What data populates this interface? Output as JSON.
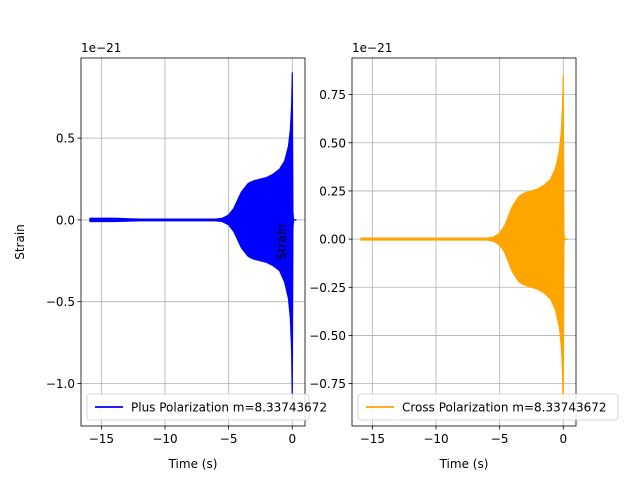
{
  "chart_data": [
    {
      "type": "line",
      "color": "#0000ff",
      "offset_text": "1e−21",
      "xlabel": "Time (s)",
      "ylabel": "Strain",
      "xlim": [
        -16.6,
        1.0
      ],
      "ylim": [
        -1.26,
        0.99
      ],
      "grid": true,
      "legend_loc": "lower left",
      "xticks": [
        -15,
        -10,
        -5,
        0
      ],
      "xtick_labels": [
        "−15",
        "−10",
        "−5",
        "0"
      ],
      "yticks": [
        0.5,
        0.0,
        -0.5,
        -1.0
      ],
      "ytick_labels": [
        "0.5",
        "0.0",
        "−0.5",
        "−1.0"
      ],
      "series": [
        {
          "name": "Plus Polarization m=8.33743672",
          "envelope": {
            "t": [
              -15.9,
              -14,
              -12,
              -10,
              -8,
              -6,
              -5.5,
              -5,
              -4.6,
              -4.3,
              -4.0,
              -3.7,
              -3.5,
              -3.3,
              -3.0,
              -2.5,
              -2.0,
              -1.5,
              -1.0,
              -0.6,
              -0.3,
              -0.15,
              -0.05,
              0.0,
              0.05,
              0.1,
              0.3
            ],
            "upper": [
              0.01,
              0.01,
              0.005,
              0.005,
              0.005,
              0.005,
              0.01,
              0.03,
              0.07,
              0.12,
              0.17,
              0.2,
              0.22,
              0.23,
              0.24,
              0.25,
              0.26,
              0.28,
              0.31,
              0.36,
              0.45,
              0.55,
              0.7,
              0.9,
              0.05,
              0.0,
              0.0
            ],
            "lower": [
              -0.01,
              -0.01,
              -0.005,
              -0.005,
              -0.005,
              -0.005,
              -0.01,
              -0.03,
              -0.07,
              -0.12,
              -0.17,
              -0.2,
              -0.22,
              -0.23,
              -0.24,
              -0.25,
              -0.26,
              -0.28,
              -0.31,
              -0.38,
              -0.48,
              -0.6,
              -0.8,
              -1.1,
              -0.05,
              0.0,
              0.0
            ]
          }
        }
      ]
    },
    {
      "type": "line",
      "color": "#ffa500",
      "offset_text": "1e−21",
      "xlabel": "Time (s)",
      "ylabel": "Strain",
      "xlim": [
        -16.6,
        1.0
      ],
      "ylim": [
        -0.97,
        0.94
      ],
      "grid": true,
      "legend_loc": "lower left",
      "xticks": [
        -15,
        -10,
        -5,
        0
      ],
      "xtick_labels": [
        "−15",
        "−10",
        "−5",
        "0"
      ],
      "yticks": [
        0.75,
        0.5,
        0.25,
        0.0,
        -0.25,
        -0.5,
        -0.75
      ],
      "ytick_labels": [
        "0.75",
        "0.50",
        "0.25",
        "0.00",
        "−0.25",
        "−0.50",
        "−0.75"
      ],
      "series": [
        {
          "name": "Cross Polarization m=8.33743672",
          "envelope": {
            "t": [
              -15.9,
              -14,
              -12,
              -10,
              -8,
              -6,
              -5.5,
              -5,
              -4.6,
              -4.3,
              -4.0,
              -3.7,
              -3.5,
              -3.3,
              -3.0,
              -2.5,
              -2.0,
              -1.5,
              -1.0,
              -0.6,
              -0.3,
              -0.15,
              -0.05,
              0.0,
              0.05,
              0.1,
              0.3
            ],
            "upper": [
              0.005,
              0.005,
              0.005,
              0.005,
              0.005,
              0.005,
              0.01,
              0.03,
              0.07,
              0.12,
              0.17,
              0.2,
              0.22,
              0.23,
              0.24,
              0.25,
              0.26,
              0.28,
              0.31,
              0.37,
              0.46,
              0.56,
              0.7,
              0.85,
              0.03,
              0.0,
              0.0
            ],
            "lower": [
              -0.005,
              -0.005,
              -0.005,
              -0.005,
              -0.005,
              -0.005,
              -0.01,
              -0.03,
              -0.07,
              -0.12,
              -0.17,
              -0.2,
              -0.22,
              -0.23,
              -0.24,
              -0.25,
              -0.26,
              -0.28,
              -0.31,
              -0.37,
              -0.46,
              -0.56,
              -0.7,
              -0.9,
              -0.03,
              0.0,
              0.0
            ]
          }
        }
      ]
    }
  ]
}
